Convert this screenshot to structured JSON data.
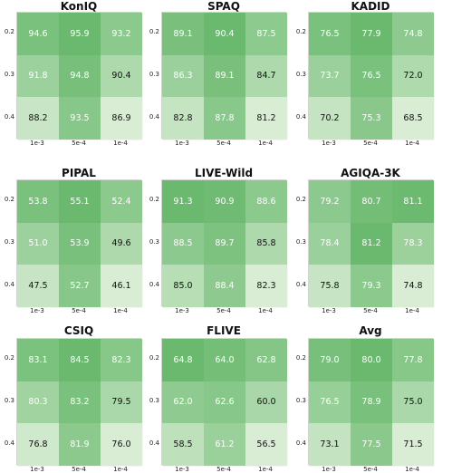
{
  "chart_data": [
    {
      "type": "heatmap",
      "title": "KonIQ",
      "row_labels": [
        "0.2",
        "0.3",
        "0.4"
      ],
      "col_labels": [
        "1e-3",
        "5e-4",
        "1e-4"
      ],
      "values": [
        [
          94.6,
          95.9,
          93.2
        ],
        [
          91.8,
          94.8,
          90.4
        ],
        [
          88.2,
          93.5,
          86.9
        ]
      ]
    },
    {
      "type": "heatmap",
      "title": "SPAQ",
      "row_labels": [
        "0.2",
        "0.3",
        "0.4"
      ],
      "col_labels": [
        "1e-3",
        "5e-4",
        "1e-4"
      ],
      "values": [
        [
          89.1,
          90.4,
          87.5
        ],
        [
          86.3,
          89.1,
          84.7
        ],
        [
          82.8,
          87.8,
          81.2
        ]
      ]
    },
    {
      "type": "heatmap",
      "title": "KADID",
      "row_labels": [
        "0.2",
        "0.3",
        "0.4"
      ],
      "col_labels": [
        "1e-3",
        "5e-4",
        "1e-4"
      ],
      "values": [
        [
          76.5,
          77.9,
          74.8
        ],
        [
          73.7,
          76.5,
          72.0
        ],
        [
          70.2,
          75.3,
          68.5
        ]
      ]
    },
    {
      "type": "heatmap",
      "title": "PIPAL",
      "row_labels": [
        "0.2",
        "0.3",
        "0.4"
      ],
      "col_labels": [
        "1e-3",
        "5e-4",
        "1e-4"
      ],
      "values": [
        [
          53.8,
          55.1,
          52.4
        ],
        [
          51.0,
          53.9,
          49.6
        ],
        [
          47.5,
          52.7,
          46.1
        ]
      ]
    },
    {
      "type": "heatmap",
      "title": "LIVE-Wild",
      "row_labels": [
        "0.2",
        "0.3",
        "0.4"
      ],
      "col_labels": [
        "1e-3",
        "5e-4",
        "1e-4"
      ],
      "values": [
        [
          91.3,
          90.9,
          88.6
        ],
        [
          88.5,
          89.7,
          85.8
        ],
        [
          85.0,
          88.4,
          82.3
        ]
      ]
    },
    {
      "type": "heatmap",
      "title": "AGIQA-3K",
      "row_labels": [
        "0.2",
        "0.3",
        "0.4"
      ],
      "col_labels": [
        "1e-3",
        "5e-4",
        "1e-4"
      ],
      "values": [
        [
          79.2,
          80.7,
          81.1
        ],
        [
          78.4,
          81.2,
          78.3
        ],
        [
          75.8,
          79.3,
          74.8
        ]
      ]
    },
    {
      "type": "heatmap",
      "title": "CSIQ",
      "row_labels": [
        "0.2",
        "0.3",
        "0.4"
      ],
      "col_labels": [
        "1e-3",
        "5e-4",
        "1e-4"
      ],
      "values": [
        [
          83.1,
          84.5,
          82.3
        ],
        [
          80.3,
          83.2,
          79.5
        ],
        [
          76.8,
          81.9,
          76.0
        ]
      ]
    },
    {
      "type": "heatmap",
      "title": "FLIVE",
      "row_labels": [
        "0.2",
        "0.3",
        "0.4"
      ],
      "col_labels": [
        "1e-3",
        "5e-4",
        "1e-4"
      ],
      "values": [
        [
          64.8,
          64.0,
          62.8
        ],
        [
          62.0,
          62.6,
          60.0
        ],
        [
          58.5,
          61.2,
          56.5
        ]
      ]
    },
    {
      "type": "heatmap",
      "title": "Avg",
      "row_labels": [
        "0.2",
        "0.3",
        "0.4"
      ],
      "col_labels": [
        "1e-3",
        "5e-4",
        "1e-4"
      ],
      "values": [
        [
          79.0,
          80.0,
          77.8
        ],
        [
          76.5,
          78.9,
          75.0
        ],
        [
          73.1,
          77.5,
          71.5
        ]
      ]
    }
  ],
  "colors": {
    "low": "#e2f2dd",
    "high": "#6ab96e",
    "text_dark": "#111111",
    "text_light": "#ffffff"
  }
}
